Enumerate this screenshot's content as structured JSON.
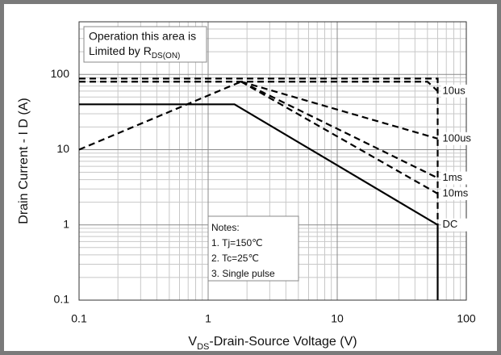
{
  "chart_data": {
    "type": "line",
    "x_label": {
      "main": "V",
      "sub": "DS",
      "rest": "-Drain-Source  Voltage (V)"
    },
    "y_label": "Drain Current - I D (A)",
    "log_x": true,
    "log_y": true,
    "grid": true,
    "minor_grid": true,
    "xlim": [
      0.1,
      100
    ],
    "xticks": [
      0.1,
      1,
      10,
      100
    ],
    "ylim": [
      0.1,
      500
    ],
    "yticks": [
      0.1,
      1,
      10,
      100
    ],
    "annotation": {
      "line1": "Operation this area is",
      "line2_main": "Limited  by R",
      "line2_sub": "DS(ON)"
    },
    "notes": [
      "Notes:",
      "1. Tj=150℃",
      "2. Tc=25℃",
      "3. Single pulse"
    ],
    "series": [
      {
        "color": "#000000",
        "dashed": true,
        "x": [
          0.1,
          1.8
        ],
        "values": [
          10,
          80
        ]
      },
      {
        "color": "#000000",
        "dashed": true,
        "x": [
          0.1,
          60,
          60
        ],
        "values": [
          88,
          88,
          1
        ]
      },
      {
        "name": "10us",
        "color": "#000000",
        "dashed": true,
        "x": [
          0.1,
          50,
          60
        ],
        "values": [
          80,
          80,
          60
        ]
      },
      {
        "name": "100us",
        "color": "#000000",
        "dashed": true,
        "x": [
          1.8,
          60
        ],
        "values": [
          80,
          14
        ]
      },
      {
        "name": "1ms",
        "color": "#000000",
        "dashed": true,
        "x": [
          1.8,
          60
        ],
        "values": [
          80,
          4.2
        ]
      },
      {
        "name": "10ms",
        "color": "#000000",
        "dashed": true,
        "x": [
          1.8,
          60
        ],
        "values": [
          80,
          2.6
        ]
      },
      {
        "name": "DC",
        "color": "#000000",
        "dashed": false,
        "x": [
          0.1,
          1.6,
          60,
          60
        ],
        "values": [
          40,
          40,
          1,
          0.1
        ]
      }
    ]
  }
}
